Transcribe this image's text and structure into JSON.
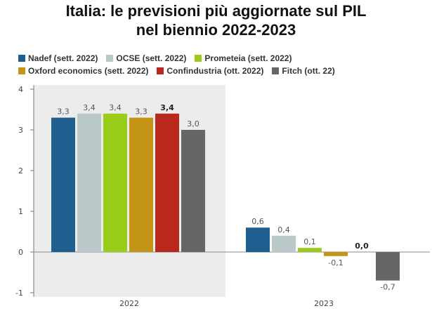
{
  "chart_data": {
    "type": "bar",
    "title": "Italia: le previsioni più aggiornate sul PIL nel biennio 2022-2023",
    "title_lines": [
      "Italia: le previsioni più aggiornate sul PIL",
      "nel biennio 2022-2023"
    ],
    "categories": [
      "2022",
      "2023"
    ],
    "series": [
      {
        "name": "Nadef (sett. 2022)",
        "values": [
          3.3,
          0.6
        ],
        "labels": [
          "3,3",
          "0,6"
        ],
        "color": "#1f5f8f"
      },
      {
        "name": "OCSE (sett. 2022)",
        "values": [
          3.4,
          0.4
        ],
        "labels": [
          "3,4",
          "0,4"
        ],
        "color": "#b9c9c9"
      },
      {
        "name": "Prometeia (sett. 2022)",
        "values": [
          3.4,
          0.1
        ],
        "labels": [
          "3,4",
          "0,1"
        ],
        "color": "#9acd1a"
      },
      {
        "name": "Oxford economics (sett. 2022)",
        "values": [
          3.3,
          -0.1
        ],
        "labels": [
          "3,3",
          "-0,1"
        ],
        "color": "#c49516"
      },
      {
        "name": "Confindustria (ott. 2022)",
        "values": [
          3.4,
          0.0
        ],
        "labels": [
          "3,4",
          "0,0"
        ],
        "color": "#b8281d",
        "bold_labels": true
      },
      {
        "name": "Fitch (ott. 22)",
        "values": [
          3.0,
          -0.7
        ],
        "labels": [
          "3,0",
          "-0,7"
        ],
        "color": "#666666"
      }
    ],
    "yticks": [
      -1,
      0,
      1,
      2,
      3,
      4
    ],
    "ytick_labels": [
      "-1",
      "0",
      "1",
      "2",
      "3",
      "4"
    ],
    "ylim": [
      -1.1,
      4.1
    ],
    "xlabel": "",
    "ylabel": "",
    "legend_position": "top-left",
    "grid": false
  }
}
